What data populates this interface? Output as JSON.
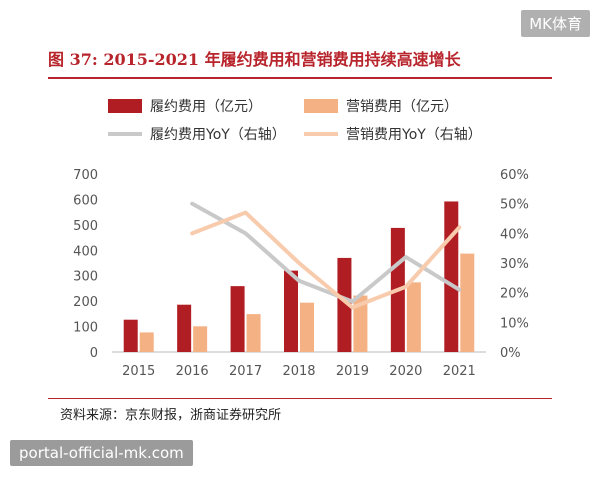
{
  "watermark_top": "MK体育",
  "watermark_bottom": "portal-official-mk.com",
  "title": "图 37:  2015-2021 年履约费用和营销费用持续高速增长",
  "source": "资料来源：京东财报，浙商证券研究所",
  "colors": {
    "fulfillment_bar": "#b01e23",
    "marketing_bar": "#f4b183",
    "fulfillment_line": "#c9c9c9",
    "marketing_line": "#f8cbad",
    "accent": "#b8242b"
  },
  "chart_data": {
    "type": "bar",
    "categories": [
      "2015",
      "2016",
      "2017",
      "2018",
      "2019",
      "2020",
      "2021"
    ],
    "series": [
      {
        "name": "履约费用（亿元）",
        "kind": "bar",
        "axis": "left",
        "values": [
          127,
          186,
          259,
          320,
          370,
          488,
          592
        ]
      },
      {
        "name": "营销费用（亿元）",
        "kind": "bar",
        "axis": "left",
        "values": [
          77,
          101,
          149,
          194,
          222,
          274,
          387
        ]
      },
      {
        "name": "履约费用YoY（右轴）",
        "kind": "line",
        "axis": "right",
        "values": [
          null,
          0.5,
          0.4,
          0.24,
          0.17,
          0.32,
          0.21
        ]
      },
      {
        "name": "营销费用YoY（右轴）",
        "kind": "line",
        "axis": "right",
        "values": [
          null,
          0.4,
          0.47,
          0.3,
          0.15,
          0.22,
          0.42
        ]
      }
    ],
    "y_left": {
      "ylim": [
        0,
        700
      ],
      "ticks": [
        "0",
        "100",
        "200",
        "300",
        "400",
        "500",
        "600",
        "700"
      ]
    },
    "y_right": {
      "ylim": [
        0,
        0.6
      ],
      "ticks": [
        "0%",
        "10%",
        "20%",
        "30%",
        "40%",
        "50%",
        "60%"
      ]
    },
    "legend_position": "top",
    "grid": false
  }
}
